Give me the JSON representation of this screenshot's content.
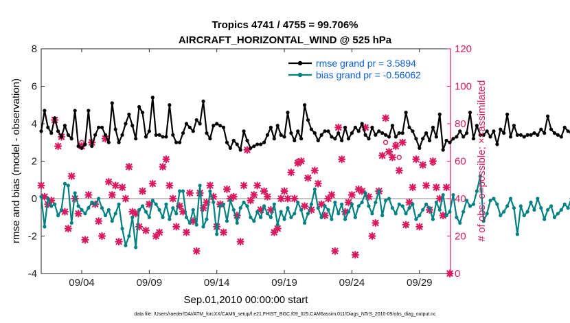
{
  "chart_data": {
    "type": "line",
    "title_line1": "Tropics 4741 / 4755 = 99.706%",
    "title_line2": "AIRCRAFT_HORIZONTAL_WIND @ 525 hPa",
    "xlabel": "Sep.01,2010 00:00:00 start",
    "ylabel_left": "rmse and bias (model - observation)",
    "ylabel_right": "# of obs: o=possible; ×=assimilated",
    "footnote": "data file: /Users/raeder/DAI/ATM_forcXX/CAM6_setup/f.e21.FHIST_BGC.f09_025.CAM6assim.011/Diags_NTrS_2010-09/obs_diag_output.nc",
    "x_range": [
      1,
      31.3
    ],
    "ylim_left": [
      -4,
      8
    ],
    "ylim_right": [
      0,
      120
    ],
    "x_ticks": [
      {
        "pos": 4,
        "label": "09/04"
      },
      {
        "pos": 9,
        "label": "09/09"
      },
      {
        "pos": 14,
        "label": "09/14"
      },
      {
        "pos": 19,
        "label": "09/19"
      },
      {
        "pos": 24,
        "label": "09/24"
      },
      {
        "pos": 29,
        "label": "09/29"
      }
    ],
    "y_left_ticks": [
      "-4",
      "-2",
      "0",
      "2",
      "4",
      "6",
      "8"
    ],
    "y_right_ticks": [
      "0",
      "20",
      "40",
      "60",
      "80",
      "100",
      "120"
    ],
    "colors": {
      "rmse": "#000000",
      "bias": "#008080",
      "obs": "#d81b60",
      "zero_line": "#b0b0b0"
    },
    "series": [
      {
        "name": "rmse grand pr = 3.5894",
        "color": "#000000",
        "x_start": 1.0,
        "dx": 0.25,
        "values": [
          3.6,
          4.7,
          3.8,
          3.5,
          4.3,
          3.6,
          3.3,
          3.9,
          3.4,
          3.2,
          4.7,
          2.8,
          2.7,
          2.9,
          4.7,
          2.8,
          3.4,
          3.8,
          3.8,
          3.4,
          3.0,
          5.1,
          3.7,
          3.0,
          3.4,
          4.0,
          4.5,
          3.9,
          3.2,
          4.9,
          4.6,
          3.3,
          3.6,
          5.4,
          3.4,
          3.4,
          3.3,
          3.3,
          5.0,
          3.4,
          3.0,
          3.0,
          3.5,
          4.0,
          3.8,
          3.6,
          4.2,
          4.0,
          5.2,
          3.5,
          3.2,
          3.9,
          4.0,
          3.9,
          3.8,
          3.0,
          2.7,
          3.1,
          2.9,
          2.6,
          3.6,
          3.1,
          2.7,
          2.8,
          2.9,
          2.9,
          3.0,
          3.4,
          3.8,
          3.2,
          3.9,
          3.4,
          3.3,
          4.6,
          3.5,
          3.1,
          3.6,
          3.2,
          5.0,
          4.2,
          3.7,
          3.5,
          3.1,
          3.4,
          3.6,
          3.6,
          3.3,
          3.2,
          3.5,
          3.1,
          3.8,
          3.2,
          3.5,
          3.8,
          3.6,
          4.0,
          3.4,
          3.2,
          3.8,
          3.4,
          3.6,
          3.5,
          3.4,
          3.3,
          3.9,
          3.3,
          3.5,
          3.5,
          4.6,
          3.8,
          3.6,
          3.2,
          2.7,
          3.2,
          3.5,
          3.1,
          3.8,
          3.3,
          4.5,
          2.6,
          3.1,
          3.0,
          3.2,
          3.3,
          3.6,
          3.3,
          3.5,
          4.6,
          3.2,
          3.9,
          3.4,
          3.4,
          3.6,
          3.3,
          3.6,
          2.9,
          3.7,
          3.5,
          4.5,
          3.3,
          3.9,
          3.4,
          3.4,
          3.3,
          3.4,
          3.4,
          3.5,
          3.4,
          3.7,
          3.5,
          4.4,
          3.7,
          3.5,
          3.4,
          3.3,
          3.8,
          3.6,
          3.5,
          3.3,
          3.1,
          3.4,
          3.6,
          3.3,
          3.4,
          3.9,
          3.6,
          3.4,
          4.9,
          4.2,
          3.5,
          3.9,
          3.5,
          3.4,
          4.4,
          3.3,
          3.3
        ]
      },
      {
        "name": "bias grand pr = -0.56062",
        "color": "#008080",
        "x_start": 1.0,
        "dx": 0.25,
        "values": [
          0.1,
          -1.5,
          0.0,
          -0.4,
          -0.3,
          -0.9,
          -0.6,
          0.8,
          0.7,
          -1.3,
          0.3,
          -0.4,
          -0.6,
          -0.8,
          -0.5,
          -0.2,
          -0.3,
          0.0,
          -0.5,
          -0.9,
          -0.6,
          -1.2,
          -0.8,
          -0.3,
          -1.6,
          -2.5,
          -2.0,
          -1.0,
          -2.6,
          -0.6,
          -0.4,
          -0.7,
          -1.0,
          -0.1,
          -0.3,
          -0.6,
          -1.0,
          -0.3,
          -1.1,
          -0.5,
          -0.8,
          0.4,
          0.4,
          -1.0,
          -1.3,
          -0.6,
          -1.4,
          0.7,
          -1.5,
          -1.1,
          0.4,
          -0.2,
          -1.9,
          -0.4,
          -0.3,
          -1.2,
          -0.1,
          -0.6,
          -1.3,
          -0.5,
          -0.2,
          -0.4,
          -1.0,
          -1.2,
          -0.7,
          -1.0,
          -0.4,
          -0.8,
          -1.0,
          -0.3,
          -1.4,
          -0.7,
          -1.1,
          -0.5,
          -1.0,
          -0.8,
          -0.2,
          -0.6,
          -1.3,
          -0.8,
          -0.3,
          0.5,
          -0.5,
          -1.0,
          -0.4,
          -0.6,
          -1.1,
          -0.2,
          -0.8,
          -0.3,
          -1.1,
          -0.7,
          -0.3,
          -1.0,
          -0.4,
          -0.2,
          0.3,
          -0.4,
          -0.8,
          -0.2,
          0.4,
          -0.9,
          -0.1,
          0.0,
          -0.5,
          -0.8,
          -0.3,
          -0.4,
          -0.8,
          -0.5,
          -0.3,
          -1.1,
          -0.9,
          -0.6,
          -0.3,
          -0.5,
          -1.1,
          -0.2,
          -0.6,
          0.2,
          -0.9,
          -0.7,
          0.2,
          -1.0,
          -1.3,
          -0.7,
          -0.1,
          -0.4,
          -0.3,
          0.4,
          1.2,
          -1.2,
          -0.8,
          -0.1,
          0.0,
          -0.3,
          -0.9,
          -0.7,
          -0.4,
          0.0,
          -0.5,
          -1.9,
          -0.4,
          -0.9,
          -0.7,
          -0.2,
          -0.6,
          0.0,
          -0.5,
          -1.1,
          -0.6,
          -0.4,
          -1.0,
          -0.8,
          -0.6,
          -0.3,
          -0.5,
          0.0,
          -0.8,
          -0.4,
          -0.4,
          -0.9,
          -0.2,
          -1.0,
          -0.4,
          -1.0,
          -1.3,
          -0.6,
          -1.4,
          -1.1,
          -0.6,
          -1.0,
          -1.5,
          -0.4,
          -0.7,
          -0.4
        ]
      }
    ],
    "obs_assimilated": {
      "name": "# of obs assimilated (×)",
      "points": [
        [
          1.0,
          47
        ],
        [
          1.25,
          41
        ],
        [
          1.5,
          37
        ],
        [
          1.75,
          39
        ],
        [
          2.0,
          82
        ],
        [
          2.25,
          68
        ],
        [
          2.5,
          73
        ],
        [
          2.75,
          33
        ],
        [
          3.0,
          24
        ],
        [
          3.25,
          52
        ],
        [
          3.5,
          40
        ],
        [
          3.75,
          32
        ],
        [
          4.0,
          68
        ],
        [
          4.25,
          18
        ],
        [
          4.5,
          42
        ],
        [
          4.75,
          70
        ],
        [
          5.0,
          37
        ],
        [
          5.25,
          28
        ],
        [
          5.5,
          20
        ],
        [
          5.75,
          72
        ],
        [
          6.0,
          49
        ],
        [
          6.25,
          42
        ],
        [
          6.5,
          47
        ],
        [
          6.75,
          17
        ],
        [
          7.0,
          46
        ],
        [
          7.25,
          40
        ],
        [
          7.5,
          57
        ],
        [
          7.75,
          33
        ],
        [
          8.0,
          32
        ],
        [
          8.25,
          25
        ],
        [
          8.5,
          44
        ],
        [
          8.75,
          23
        ],
        [
          9.0,
          37
        ],
        [
          9.25,
          48
        ],
        [
          9.5,
          20
        ],
        [
          9.75,
          22
        ],
        [
          10.0,
          57
        ],
        [
          10.25,
          61
        ],
        [
          10.5,
          47
        ],
        [
          10.75,
          40
        ],
        [
          11.0,
          25
        ],
        [
          11.25,
          36
        ],
        [
          11.5,
          33
        ],
        [
          11.75,
          22
        ],
        [
          12.0,
          43
        ],
        [
          12.25,
          28
        ],
        [
          12.5,
          12
        ],
        [
          12.75,
          43
        ],
        [
          13.0,
          35
        ],
        [
          13.25,
          38
        ],
        [
          13.5,
          47
        ],
        [
          13.75,
          41
        ],
        [
          14.0,
          25
        ],
        [
          14.25,
          37
        ],
        [
          14.5,
          22
        ],
        [
          14.75,
          45
        ],
        [
          15.0,
          40
        ],
        [
          15.25,
          41
        ],
        [
          15.5,
          31
        ],
        [
          15.75,
          17
        ],
        [
          16.0,
          47
        ],
        [
          16.25,
          66
        ],
        [
          16.5,
          39
        ],
        [
          16.75,
          42
        ],
        [
          17.0,
          47
        ],
        [
          17.25,
          34
        ],
        [
          17.5,
          44
        ],
        [
          17.75,
          41
        ],
        [
          18.0,
          34
        ],
        [
          18.25,
          22
        ],
        [
          18.5,
          24
        ],
        [
          18.75,
          40
        ],
        [
          19.0,
          44
        ],
        [
          19.25,
          40
        ],
        [
          19.5,
          54
        ],
        [
          19.75,
          40
        ],
        [
          20.0,
          59
        ],
        [
          20.25,
          60
        ],
        [
          20.5,
          36
        ],
        [
          20.75,
          51
        ],
        [
          21.0,
          34
        ],
        [
          21.25,
          55
        ],
        [
          21.5,
          48
        ],
        [
          21.75,
          37
        ],
        [
          22.0,
          31
        ],
        [
          22.25,
          40
        ],
        [
          22.5,
          42
        ],
        [
          22.75,
          12
        ],
        [
          23.0,
          78
        ],
        [
          23.25,
          61
        ],
        [
          23.5,
          33
        ],
        [
          23.75,
          38
        ],
        [
          24.0,
          42
        ],
        [
          24.25,
          10
        ],
        [
          24.5,
          45
        ],
        [
          24.75,
          44
        ],
        [
          25.0,
          78
        ],
        [
          25.25,
          41
        ],
        [
          25.5,
          20
        ],
        [
          25.75,
          27
        ],
        [
          26.0,
          44
        ],
        [
          26.25,
          63
        ],
        [
          26.5,
          83
        ],
        [
          26.75,
          65
        ],
        [
          27.0,
          62
        ],
        [
          27.25,
          68
        ],
        [
          27.5,
          55
        ],
        [
          27.75,
          70
        ],
        [
          28.0,
          26
        ],
        [
          28.25,
          38
        ],
        [
          28.5,
          46
        ],
        [
          28.75,
          61
        ],
        [
          29.0,
          25
        ],
        [
          29.25,
          58
        ],
        [
          29.5,
          47
        ],
        [
          29.75,
          34
        ],
        [
          30.0,
          60
        ],
        [
          30.25,
          46
        ],
        [
          30.5,
          40
        ],
        [
          30.75,
          31
        ],
        [
          31.0,
          46
        ],
        [
          31.25,
          0
        ]
      ]
    },
    "obs_possible": {
      "name": "# of obs possible (o)",
      "points": [
        [
          4.0,
          70
        ],
        [
          20.0,
          60
        ],
        [
          26.5,
          70
        ],
        [
          27.25,
          69
        ],
        [
          27.5,
          62
        ],
        [
          30.0,
          59
        ],
        [
          31.25,
          0
        ]
      ]
    },
    "legend": {
      "placement": "top-right",
      "entries": [
        "rmse grand pr = 3.5894",
        "bias grand pr = -0.56062"
      ],
      "text_color": "#0b5ed7"
    }
  }
}
